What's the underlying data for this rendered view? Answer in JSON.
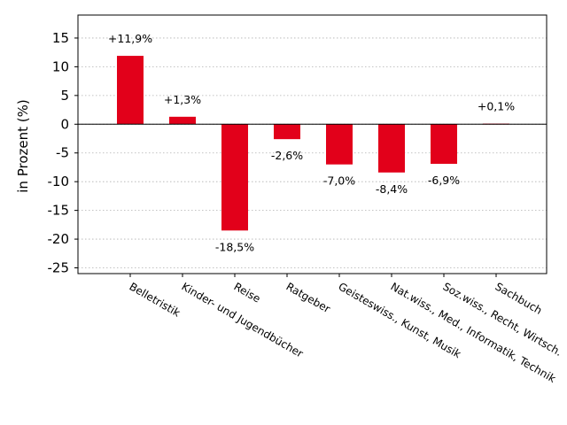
{
  "colors": {
    "bar": "#e2001a"
  },
  "chart_data": {
    "type": "bar",
    "ylabel": "in Prozent (%)",
    "ylim": [
      -26,
      19
    ],
    "yticks": [
      15,
      10,
      5,
      0,
      -5,
      -10,
      -15,
      -20,
      -25
    ],
    "ytick_labels": [
      "15",
      "10",
      "5",
      "0",
      "-5",
      "-10",
      "-15",
      "-20",
      "-25"
    ],
    "grid": true,
    "categories": [
      "Belletristik",
      "Kinder- und Jugendbücher",
      "Reise",
      "Ratgeber",
      "Geisteswiss., Kunst, Musik",
      "Nat.wiss., Med., Informatik, Technik",
      "Soz.wiss., Recht, Wirtsch.",
      "Sachbuch"
    ],
    "values": [
      11.9,
      1.3,
      -18.5,
      -2.6,
      -7.0,
      -8.4,
      -6.9,
      0.1
    ],
    "data_labels": [
      "+11,9%",
      "+1,3%",
      "-18,5%",
      "-2,6%",
      "-7,0%",
      "-8,4%",
      "-6,9%",
      "+0,1%"
    ]
  }
}
